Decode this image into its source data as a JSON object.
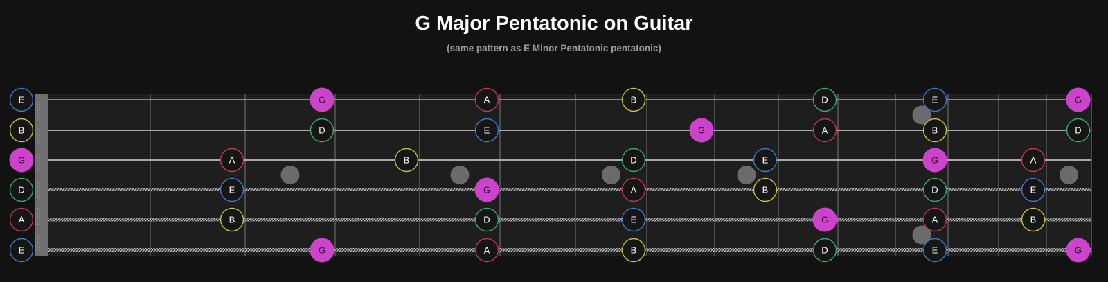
{
  "header": {
    "title": "G Major Pentatonic on Guitar",
    "subtitle": "(same pattern as E Minor Pentatonic pentatonic)"
  },
  "fretboard": {
    "fret_count": 15,
    "inlay_frets": [
      3,
      5,
      7,
      9,
      15
    ],
    "double_inlay_frets": [
      12
    ],
    "root_note": "G",
    "note_colors": {
      "E": "#3f7cc4",
      "B": "#c9c23c",
      "G": "#cc44cc",
      "D": "#3aab74",
      "A": "#c0395a"
    },
    "strings": [
      {
        "open": "E",
        "wound": false,
        "notes": [
          {
            "fret": 0,
            "note": "E"
          },
          {
            "fret": 3,
            "note": "G"
          },
          {
            "fret": 5,
            "note": "A"
          },
          {
            "fret": 7,
            "note": "B"
          },
          {
            "fret": 10,
            "note": "D"
          },
          {
            "fret": 12,
            "note": "E"
          },
          {
            "fret": 15,
            "note": "G"
          }
        ]
      },
      {
        "open": "B",
        "wound": false,
        "notes": [
          {
            "fret": 0,
            "note": "B"
          },
          {
            "fret": 3,
            "note": "D"
          },
          {
            "fret": 5,
            "note": "E"
          },
          {
            "fret": 8,
            "note": "G"
          },
          {
            "fret": 10,
            "note": "A"
          },
          {
            "fret": 12,
            "note": "B"
          },
          {
            "fret": 15,
            "note": "D"
          }
        ]
      },
      {
        "open": "G",
        "wound": false,
        "notes": [
          {
            "fret": 0,
            "note": "G"
          },
          {
            "fret": 2,
            "note": "A"
          },
          {
            "fret": 4,
            "note": "B"
          },
          {
            "fret": 7,
            "note": "D"
          },
          {
            "fret": 9,
            "note": "E"
          },
          {
            "fret": 12,
            "note": "G"
          },
          {
            "fret": 14,
            "note": "A"
          }
        ]
      },
      {
        "open": "D",
        "wound": true,
        "notes": [
          {
            "fret": 0,
            "note": "D"
          },
          {
            "fret": 2,
            "note": "E"
          },
          {
            "fret": 5,
            "note": "G"
          },
          {
            "fret": 7,
            "note": "A"
          },
          {
            "fret": 9,
            "note": "B"
          },
          {
            "fret": 12,
            "note": "D"
          },
          {
            "fret": 14,
            "note": "E"
          }
        ]
      },
      {
        "open": "A",
        "wound": true,
        "notes": [
          {
            "fret": 0,
            "note": "A"
          },
          {
            "fret": 2,
            "note": "B"
          },
          {
            "fret": 5,
            "note": "D"
          },
          {
            "fret": 7,
            "note": "E"
          },
          {
            "fret": 10,
            "note": "G"
          },
          {
            "fret": 12,
            "note": "A"
          },
          {
            "fret": 14,
            "note": "B"
          }
        ]
      },
      {
        "open": "E",
        "wound": true,
        "notes": [
          {
            "fret": 0,
            "note": "E"
          },
          {
            "fret": 3,
            "note": "G"
          },
          {
            "fret": 5,
            "note": "A"
          },
          {
            "fret": 7,
            "note": "B"
          },
          {
            "fret": 10,
            "note": "D"
          },
          {
            "fret": 12,
            "note": "E"
          },
          {
            "fret": 15,
            "note": "G"
          }
        ]
      }
    ]
  }
}
